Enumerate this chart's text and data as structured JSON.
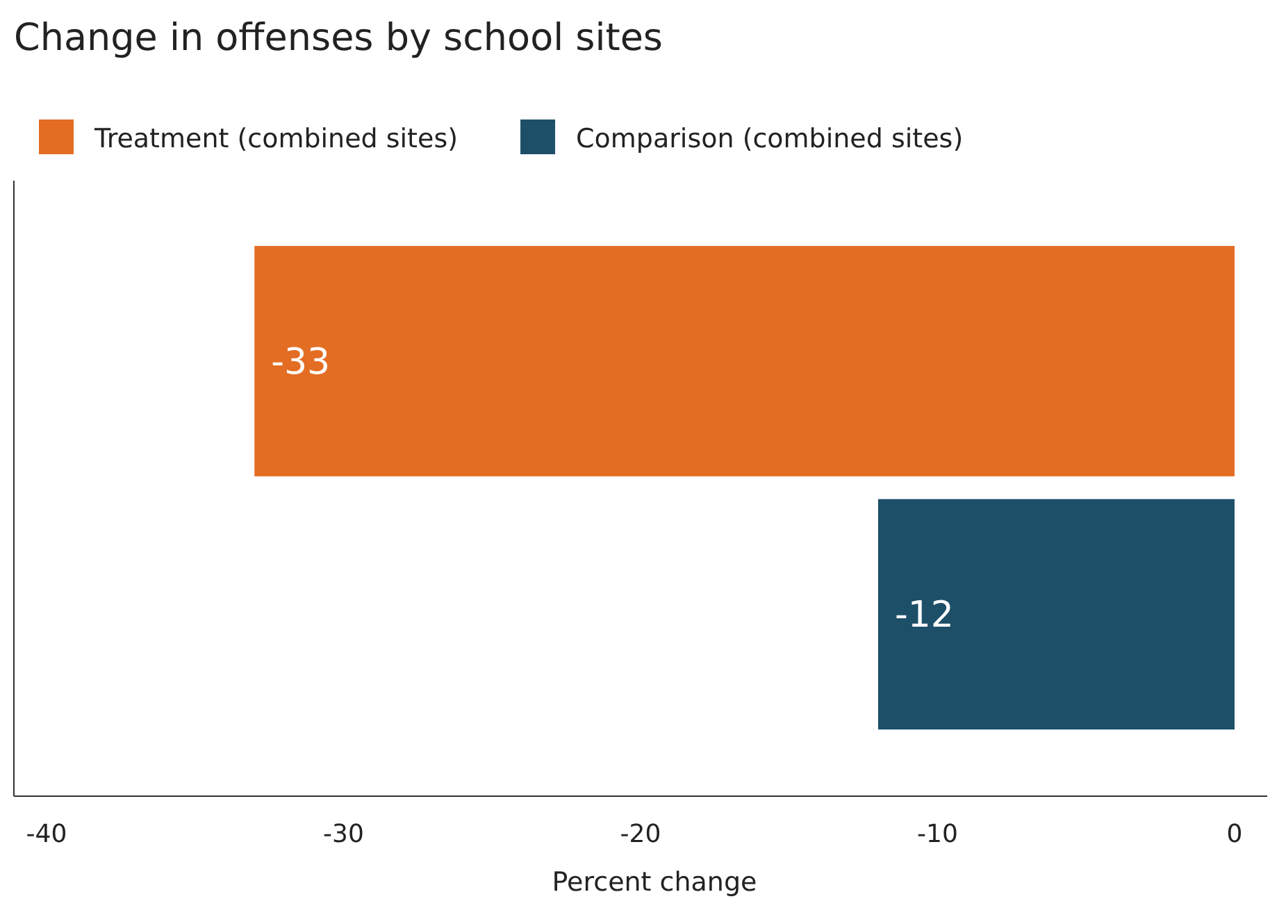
{
  "chart_data": {
    "type": "bar",
    "orientation": "horizontal",
    "title": "Change in offenses by school sites",
    "xlabel": "Percent change",
    "categories": [
      null,
      null
    ],
    "series": [
      {
        "name": "Treatment (combined sites)",
        "color": "#e36d23",
        "values": [
          -33,
          null
        ]
      },
      {
        "name": "Comparison (combined sites)",
        "color": "#1d4f68",
        "values": [
          null,
          -12
        ]
      }
    ],
    "xlim": [
      -41.1,
      1.1
    ],
    "xticks": [
      -40,
      -30,
      -20,
      -10,
      0
    ],
    "data_labels": true,
    "legend": "top left",
    "grid": false
  }
}
